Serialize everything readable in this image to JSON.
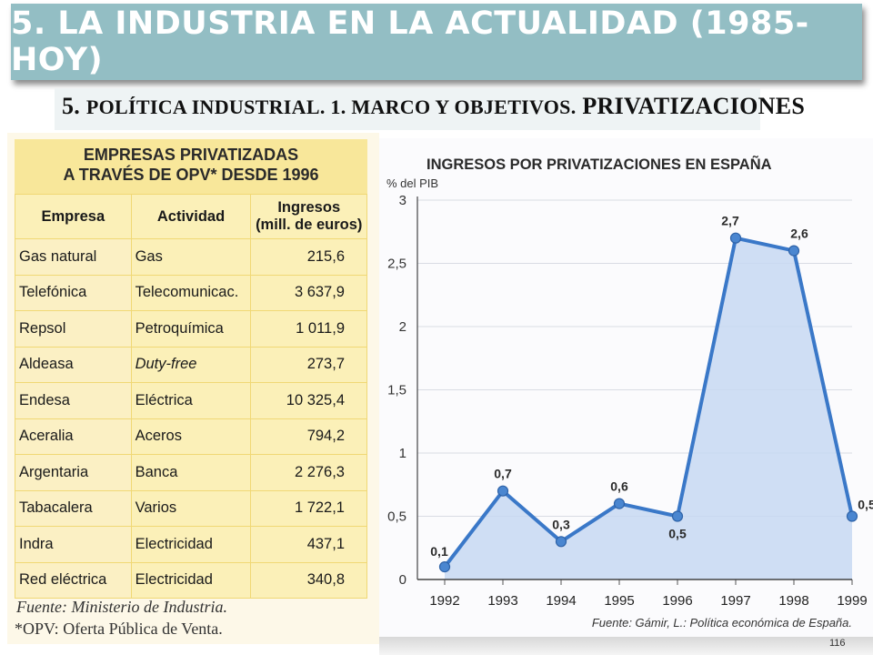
{
  "header": {
    "title": "5. LA INDUSTRIA EN LA ACTUALIDAD (1985-HOY)",
    "subtitle_prefix": "5. ",
    "subtitle_smallcaps": "POLÍTICA INDUSTRIAL. 1. MARCO Y OBJETIVOS.",
    "subtitle_suffix": " PRIVATIZACIONES"
  },
  "table": {
    "heading_line1": "EMPRESAS PRIVATIZADAS",
    "heading_line2": "A TRAVÉS DE OPV* DESDE 1996",
    "columns": [
      "Empresa",
      "Actividad",
      "Ingresos",
      "(mill. de euros)"
    ],
    "rows": [
      {
        "empresa": "Gas natural",
        "actividad": "Gas",
        "ingresos": "215,6"
      },
      {
        "empresa": "Telefónica",
        "actividad": "Telecomunicac.",
        "ingresos": "3 637,9"
      },
      {
        "empresa": "Repsol",
        "actividad": "Petroquímica",
        "ingresos": "1 011,9"
      },
      {
        "empresa": "Aldeasa",
        "actividad": "Duty-free",
        "ingresos": "273,7"
      },
      {
        "empresa": "Endesa",
        "actividad": "Eléctrica",
        "ingresos": "10 325,4"
      },
      {
        "empresa": "Aceralia",
        "actividad": "Aceros",
        "ingresos": "794,2"
      },
      {
        "empresa": "Argentaria",
        "actividad": "Banca",
        "ingresos": "2 276,3"
      },
      {
        "empresa": "Tabacalera",
        "actividad": "Varios",
        "ingresos": "1 722,1"
      },
      {
        "empresa": "Indra",
        "actividad": "Electricidad",
        "ingresos": "437,1"
      },
      {
        "empresa": "Red eléctrica",
        "actividad": "Electricidad",
        "ingresos": "340,8"
      }
    ],
    "source": "Fuente: Ministerio de Industria.",
    "note_prefix": "*OPV: ",
    "note_text": "Oferta Pública de Venta."
  },
  "chart_data": {
    "type": "area",
    "title": "INGRESOS POR PRIVATIZACIONES EN ESPAÑA",
    "ylabel": "% del PIB",
    "xlabel": "",
    "categories": [
      "1992",
      "1993",
      "1994",
      "1995",
      "1996",
      "1997",
      "1998",
      "1999"
    ],
    "values": [
      0.1,
      0.7,
      0.3,
      0.6,
      0.5,
      2.7,
      2.6,
      0.5
    ],
    "data_labels": [
      "0,1",
      "0,7",
      "0,3",
      "0,6",
      "0,5",
      "2,7",
      "2,6",
      "0,5"
    ],
    "yticks": [
      0,
      0.5,
      1,
      1.5,
      2,
      2.5,
      3
    ],
    "ytick_labels": [
      "0",
      "0,5",
      "1",
      "1,5",
      "2",
      "2,5",
      "3"
    ],
    "ylim": [
      0,
      3
    ],
    "grid": true,
    "source": "Fuente: Gámir, L.: Política económica de España.",
    "colors": {
      "line": "#3a78c8",
      "fill": "#c7d8f2",
      "marker": "#4a86d0"
    }
  },
  "footer": {
    "page_number": "116"
  }
}
